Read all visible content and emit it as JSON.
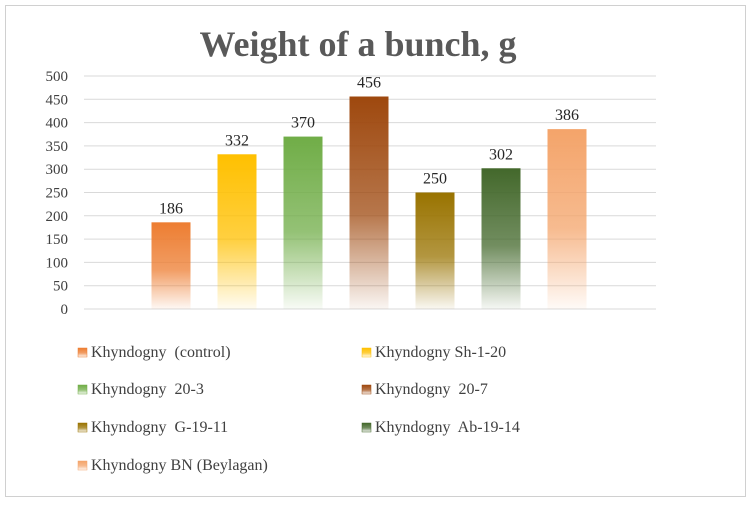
{
  "chart_data": {
    "type": "bar",
    "title": "Weight of a bunch, g",
    "xlabel": "",
    "ylabel": "",
    "ylim": [
      0,
      500
    ],
    "yticks": [
      0,
      50,
      100,
      150,
      200,
      250,
      300,
      350,
      400,
      450,
      500
    ],
    "grid": true,
    "legend_position": "bottom",
    "series": [
      {
        "name": "Khyndogny  (control)",
        "value": 186,
        "color": "#ED7D31"
      },
      {
        "name": "Khyndogny Sh-1-20",
        "value": 332,
        "color": "#FFC000"
      },
      {
        "name": "Khyndogny  20-3",
        "value": 370,
        "color": "#70AD47"
      },
      {
        "name": "Khyndogny  20-7",
        "value": 456,
        "color": "#9E480E"
      },
      {
        "name": "Khyndogny  G-19-11",
        "value": 250,
        "color": "#997300"
      },
      {
        "name": "Khyndogny  Ab-19-14",
        "value": 302,
        "color": "#43682B"
      },
      {
        "name": "Khyndogny BN (Beylagan)",
        "value": 386,
        "color": "#F4A46A"
      }
    ]
  }
}
